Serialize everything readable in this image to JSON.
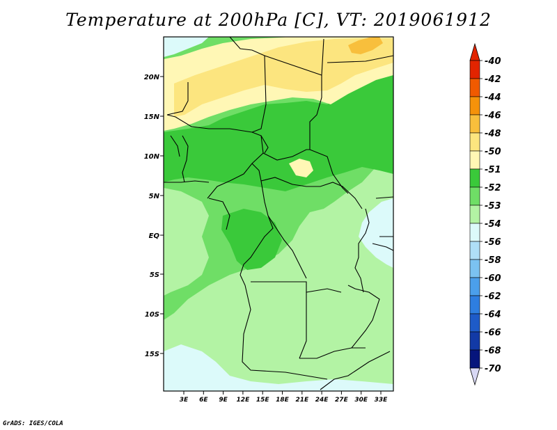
{
  "title": "Temperature at 200hPa [C], VT: 2019061912",
  "credit": "GrADS: IGES/COLA",
  "map": {
    "lat_labels": [
      "20N",
      "15N",
      "10N",
      "5N",
      "EQ",
      "5S",
      "10S",
      "15S"
    ],
    "lon_labels": [
      "3E",
      "6E",
      "9E",
      "12E",
      "15E",
      "18E",
      "21E",
      "24E",
      "27E",
      "30E",
      "33E"
    ]
  },
  "legend": {
    "labels": [
      "-40",
      "-42",
      "-44",
      "-46",
      "-48",
      "-50",
      "-51",
      "-52",
      "-53",
      "-54",
      "-56",
      "-58",
      "-60",
      "-62",
      "-64",
      "-66",
      "-68",
      "-70"
    ],
    "colors": [
      "#a00000",
      "#e22400",
      "#f05a00",
      "#f5920a",
      "#f8bf3c",
      "#fce57f",
      "#fff7b5",
      "#3ac93a",
      "#6fde66",
      "#b3f3a4",
      "#dcfafa",
      "#afdff7",
      "#7bc2f1",
      "#4b9feb",
      "#2e7ee0",
      "#1e5bc8",
      "#123aa6",
      "#06157c"
    ],
    "top_color": "#e22400",
    "bottom_color": "#d8d8f4"
  },
  "palette": {
    "cold": "#dcfafa",
    "m54": "#b3f3a4",
    "m53": "#6fde66",
    "m52": "#3ac93a",
    "m51": "#fff7b5",
    "m50": "#fce57f",
    "m48": "#f8bf3c"
  }
}
